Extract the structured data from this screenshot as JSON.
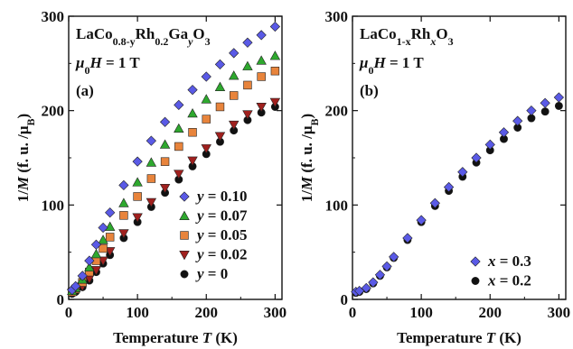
{
  "chart_data": [
    {
      "type": "scatter",
      "panel_label": "(a)",
      "compound": {
        "base": "LaCo",
        "sub1": "0.8-y",
        "mid": "Rh",
        "sub2": "0.2",
        "mid2": "Ga",
        "sub3": "y",
        "end": "O",
        "sub4": "3"
      },
      "field": {
        "mu": "μ",
        "sub": "0",
        "rest": "H = 1 T"
      },
      "xlabel": "Temperature T (K)",
      "ylabel": "1/M (f. u. /μB)",
      "xlim": [
        0,
        310
      ],
      "ylim": [
        0,
        300
      ],
      "xticks": [
        "0",
        "100",
        "200",
        "300"
      ],
      "yticks": [
        "0",
        "100",
        "200",
        "300"
      ],
      "legend_placement": "bottom-right",
      "series": [
        {
          "name": "y = 0.10",
          "var": "y",
          "val": "= 0.10",
          "marker": "diamond",
          "color": "#5a5ae6",
          "x": [
            5,
            10,
            20,
            30,
            40,
            50,
            60,
            80,
            100,
            120,
            140,
            160,
            180,
            200,
            220,
            240,
            260,
            280,
            300
          ],
          "y": [
            10,
            14,
            25,
            41,
            58,
            76,
            92,
            121,
            146,
            168,
            188,
            206,
            222,
            236,
            249,
            261,
            272,
            280,
            289
          ]
        },
        {
          "name": "y = 0.07",
          "var": "y",
          "val": "= 0.07",
          "marker": "triangle-up",
          "color": "#2ea82e",
          "x": [
            5,
            10,
            20,
            30,
            40,
            50,
            60,
            80,
            100,
            120,
            140,
            160,
            180,
            200,
            220,
            240,
            260,
            280,
            300
          ],
          "y": [
            9,
            12,
            21,
            34,
            48,
            63,
            77,
            102,
            124,
            145,
            164,
            181,
            197,
            212,
            225,
            237,
            247,
            253,
            258
          ]
        },
        {
          "name": "y = 0.05",
          "var": "y",
          "val": "= 0.05",
          "marker": "square",
          "color": "#e8843c",
          "x": [
            5,
            10,
            20,
            30,
            40,
            50,
            60,
            80,
            100,
            120,
            140,
            160,
            180,
            200,
            220,
            240,
            260,
            280,
            300
          ],
          "y": [
            8,
            11,
            18,
            29,
            41,
            54,
            66,
            89,
            109,
            128,
            146,
            162,
            177,
            191,
            204,
            216,
            227,
            236,
            242
          ]
        },
        {
          "name": "y = 0.02",
          "var": "y",
          "val": "= 0.02",
          "marker": "triangle-down",
          "color": "#a0201e",
          "x": [
            5,
            10,
            20,
            30,
            40,
            50,
            60,
            80,
            100,
            120,
            140,
            160,
            180,
            200,
            220,
            240,
            260,
            280,
            300
          ],
          "y": [
            7,
            9,
            14,
            22,
            31,
            41,
            51,
            70,
            87,
            103,
            118,
            133,
            147,
            160,
            173,
            185,
            196,
            204,
            209
          ]
        },
        {
          "name": "y = 0",
          "var": "y",
          "val": "= 0",
          "marker": "circle",
          "color": "#111111",
          "x": [
            5,
            10,
            20,
            30,
            40,
            50,
            60,
            80,
            100,
            120,
            140,
            160,
            180,
            200,
            220,
            240,
            260,
            280,
            300
          ],
          "y": [
            6,
            8,
            13,
            20,
            29,
            38,
            47,
            65,
            82,
            98,
            113,
            127,
            141,
            154,
            167,
            179,
            190,
            198,
            204
          ]
        }
      ]
    },
    {
      "type": "scatter",
      "panel_label": "(b)",
      "compound": {
        "base": "LaCo",
        "sub1": "1-x",
        "mid": "Rh",
        "sub2": "x",
        "end": "O",
        "sub4": "3"
      },
      "field": {
        "mu": "μ",
        "sub": "0",
        "rest": "H = 1 T"
      },
      "xlabel": "Temperature T (K)",
      "ylabel": "1/M (f. u. /μB)",
      "xlim": [
        0,
        310
      ],
      "ylim": [
        0,
        300
      ],
      "xticks": [
        "0",
        "100",
        "200",
        "300"
      ],
      "yticks": [
        "0",
        "100",
        "200",
        "300"
      ],
      "legend_placement": "bottom-right",
      "series": [
        {
          "name": "x = 0.3",
          "var": "x",
          "val": "= 0.3",
          "marker": "diamond",
          "color": "#5a5ae6",
          "x": [
            5,
            10,
            20,
            30,
            40,
            50,
            60,
            80,
            100,
            120,
            140,
            160,
            180,
            200,
            220,
            240,
            260,
            280,
            300
          ],
          "y": [
            8,
            9,
            12,
            18,
            26,
            35,
            45,
            65,
            84,
            102,
            119,
            135,
            150,
            164,
            177,
            189,
            200,
            208,
            214
          ]
        },
        {
          "name": "x = 0.2",
          "var": "x",
          "val": "= 0.2",
          "marker": "circle",
          "color": "#111111",
          "x": [
            5,
            10,
            20,
            30,
            40,
            50,
            60,
            80,
            100,
            120,
            140,
            160,
            180,
            200,
            220,
            240,
            260,
            280,
            300
          ],
          "y": [
            7,
            8,
            11,
            17,
            25,
            34,
            44,
            63,
            82,
            99,
            115,
            130,
            145,
            158,
            170,
            182,
            192,
            199,
            205
          ]
        }
      ]
    }
  ]
}
